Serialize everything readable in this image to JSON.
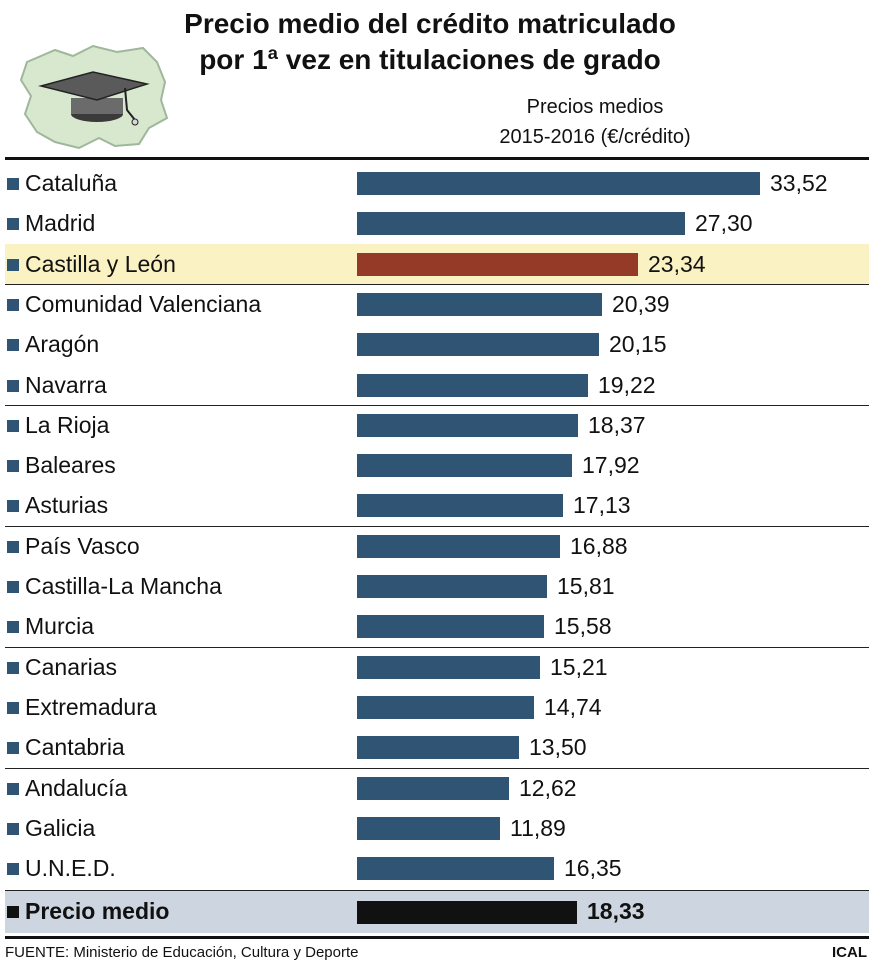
{
  "chart_data": {
    "type": "bar",
    "orientation": "horizontal",
    "title": "Precio medio del crédito matriculado por 1ª vez en titulaciones de grado",
    "title_lines": [
      "Precio medio del crédito matriculado",
      "por 1ª vez en titulaciones de grado"
    ],
    "subtitle_lines": [
      "Precios medios",
      "2015-2016 (€/crédito)"
    ],
    "categories": [
      "Cataluña",
      "Madrid",
      "Castilla y León",
      "Comunidad Valenciana",
      "Aragón",
      "Navarra",
      "La Rioja",
      "Baleares",
      "Asturias",
      "País Vasco",
      "Castilla-La Mancha",
      "Murcia",
      "Canarias",
      "Extremadura",
      "Cantabria",
      "Andalucía",
      "Galicia",
      "U.N.E.D.",
      "Precio medio"
    ],
    "values": [
      33.52,
      27.3,
      23.34,
      20.39,
      20.15,
      19.22,
      18.37,
      17.92,
      17.13,
      16.88,
      15.81,
      15.58,
      15.21,
      14.74,
      13.5,
      12.62,
      11.89,
      16.35,
      18.33
    ],
    "value_labels": [
      "33,52",
      "27,30",
      "23,34",
      "20,39",
      "20,15",
      "19,22",
      "18,37",
      "17,92",
      "17,13",
      "16,88",
      "15,81",
      "15,58",
      "15,21",
      "14,74",
      "13,50",
      "12,62",
      "11,89",
      "16,35",
      "18,33"
    ],
    "highlight_category": "Castilla y León",
    "average_category": "Precio medio",
    "xlim": [
      0,
      33.52
    ],
    "grid": false,
    "legend": "none",
    "colors": {
      "bar": "#2f5474",
      "highlight_bar": "#943a26",
      "average_bar": "#111111",
      "highlight_row": "#fbf2c3",
      "average_row": "#cdd5e1"
    }
  },
  "footer": {
    "source": "FUENTE: Ministerio de Educación, Cultura y Deporte",
    "credit": "ICAL"
  },
  "logo": {
    "icon": "graduation-cap-over-map-icon"
  }
}
